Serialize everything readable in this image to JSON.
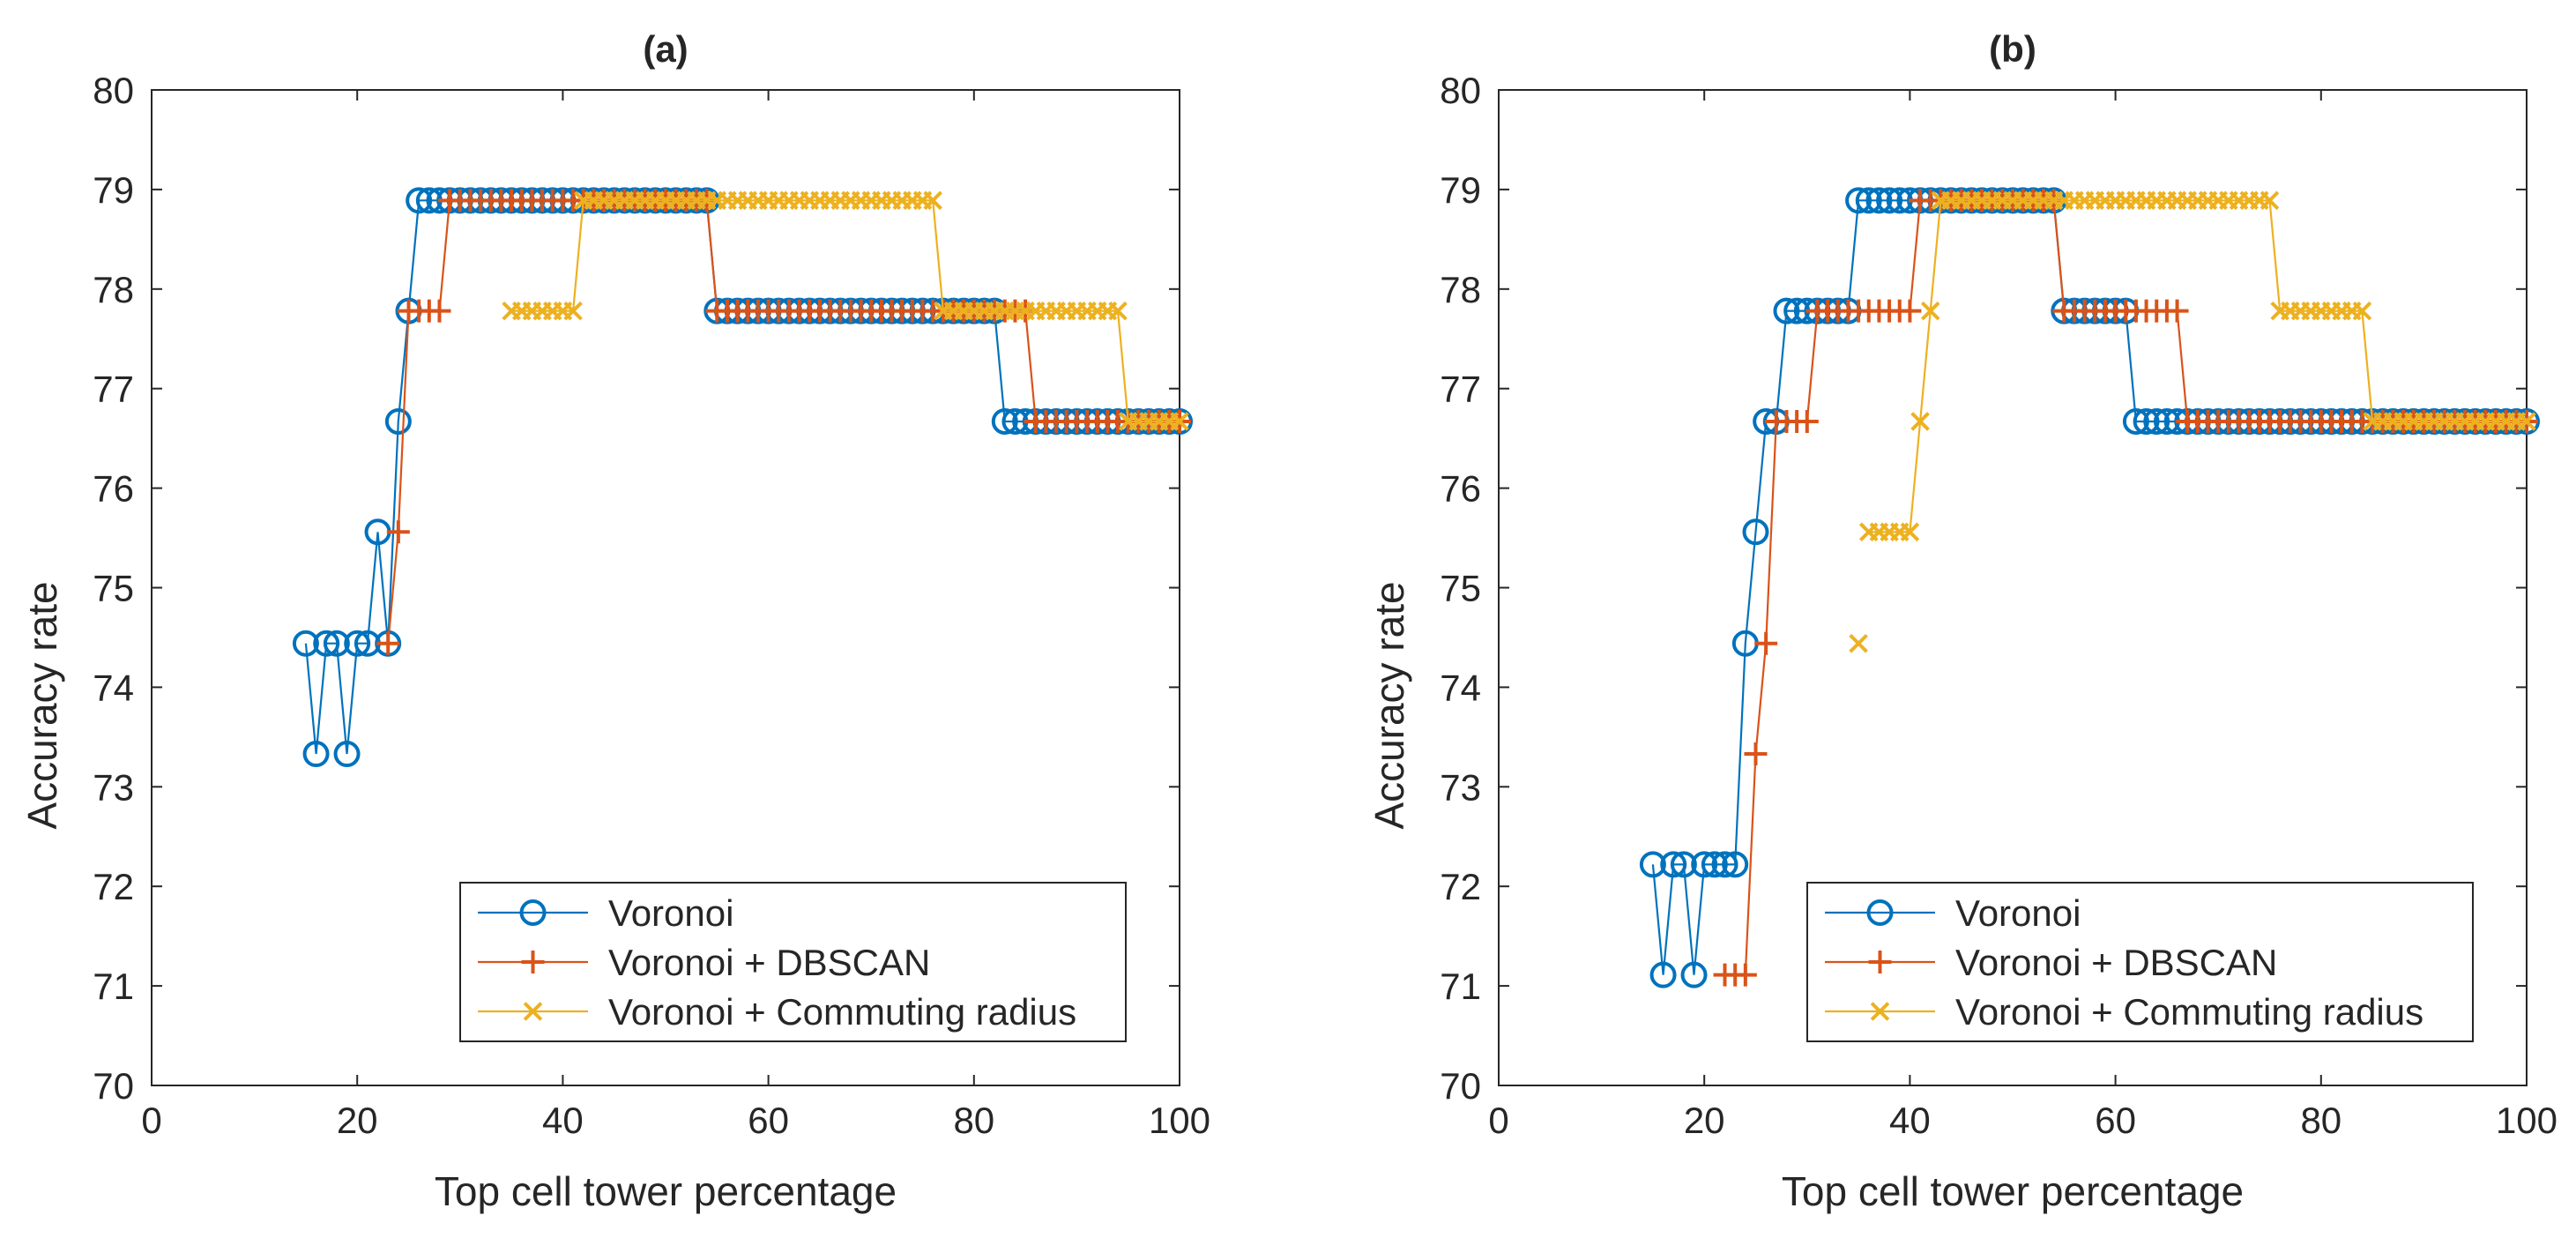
{
  "chart_data": [
    {
      "type": "line",
      "title": "(a)",
      "xlabel": "Top cell tower percentage",
      "ylabel": "Accuracy rate",
      "xlim": [
        0,
        100
      ],
      "ylim": [
        70,
        80
      ],
      "xticks": [
        0,
        20,
        40,
        60,
        80,
        100
      ],
      "yticks": [
        70,
        71,
        72,
        73,
        74,
        75,
        76,
        77,
        78,
        79,
        80
      ],
      "grid": false,
      "legend_position": "bottom-right",
      "series": [
        {
          "name": "Voronoi",
          "marker": "circle",
          "color": "#0072BD",
          "segments": [
            {
              "x_start": 15,
              "x_end": 100,
              "values": [
                74.44,
                73.33,
                74.44,
                74.44,
                73.33,
                74.44,
                74.44,
                75.56,
                74.44,
                76.67,
                77.78,
                78.89,
                78.89,
                78.89,
                78.89,
                78.89,
                78.89,
                78.89,
                78.89,
                78.89,
                78.89,
                78.89,
                78.89,
                78.89,
                78.89,
                78.89,
                78.89,
                78.89,
                78.89,
                78.89,
                78.89,
                78.89,
                78.89,
                78.89,
                78.89,
                78.89,
                78.89,
                78.89,
                78.89,
                78.89,
                77.78,
                77.78,
                77.78,
                77.78,
                77.78,
                77.78,
                77.78,
                77.78,
                77.78,
                77.78,
                77.78,
                77.78,
                77.78,
                77.78,
                77.78,
                77.78,
                77.78,
                77.78,
                77.78,
                77.78,
                77.78,
                77.78,
                77.78,
                77.78,
                77.78,
                77.78,
                77.78,
                77.78,
                76.67,
                76.67,
                76.67,
                76.67,
                76.67,
                76.67,
                76.67,
                76.67,
                76.67,
                76.67,
                76.67,
                76.67,
                76.67,
                76.67,
                76.67,
                76.67,
                76.67,
                76.67
              ]
            }
          ]
        },
        {
          "name": "Voronoi + DBSCAN",
          "marker": "plus",
          "color": "#D95319",
          "segments": [
            {
              "x_start": 23,
              "x_end": 100,
              "values": [
                74.44,
                75.56,
                77.78,
                77.78,
                77.78,
                77.78,
                78.89,
                78.89,
                78.89,
                78.89,
                78.89,
                78.89,
                78.89,
                78.89,
                78.89,
                78.89,
                78.89,
                78.89,
                78.89,
                78.89,
                78.89,
                78.89,
                78.89,
                78.89,
                78.89,
                78.89,
                78.89,
                78.89,
                78.89,
                78.89,
                78.89,
                78.89,
                77.78,
                77.78,
                77.78,
                77.78,
                77.78,
                77.78,
                77.78,
                77.78,
                77.78,
                77.78,
                77.78,
                77.78,
                77.78,
                77.78,
                77.78,
                77.78,
                77.78,
                77.78,
                77.78,
                77.78,
                77.78,
                77.78,
                77.78,
                77.78,
                77.78,
                77.78,
                77.78,
                77.78,
                77.78,
                77.78,
                77.78,
                76.67,
                76.67,
                76.67,
                76.67,
                76.67,
                76.67,
                76.67,
                76.67,
                76.67,
                76.67,
                76.67,
                76.67,
                76.67,
                76.67,
                76.67
              ]
            }
          ]
        },
        {
          "name": "Voronoi + Commuting radius",
          "marker": "x",
          "color": "#EDB120",
          "segments": [
            {
              "x_start": 35,
              "x_end": 100,
              "values": [
                77.78,
                77.78,
                77.78,
                77.78,
                77.78,
                77.78,
                77.78,
                78.89,
                78.89,
                78.89,
                78.89,
                78.89,
                78.89,
                78.89,
                78.89,
                78.89,
                78.89,
                78.89,
                78.89,
                78.89,
                78.89,
                78.89,
                78.89,
                78.89,
                78.89,
                78.89,
                78.89,
                78.89,
                78.89,
                78.89,
                78.89,
                78.89,
                78.89,
                78.89,
                78.89,
                78.89,
                78.89,
                78.89,
                78.89,
                78.89,
                78.89,
                78.89,
                77.78,
                77.78,
                77.78,
                77.78,
                77.78,
                77.78,
                77.78,
                77.78,
                77.78,
                77.78,
                77.78,
                77.78,
                77.78,
                77.78,
                77.78,
                77.78,
                77.78,
                77.78,
                76.67,
                76.67,
                76.67,
                76.67,
                76.67,
                76.67
              ]
            }
          ]
        }
      ]
    },
    {
      "type": "line",
      "title": "(b)",
      "xlabel": "Top cell tower percentage",
      "ylabel": "Accuracy rate",
      "xlim": [
        0,
        100
      ],
      "ylim": [
        70,
        80
      ],
      "xticks": [
        0,
        20,
        40,
        60,
        80,
        100
      ],
      "yticks": [
        70,
        71,
        72,
        73,
        74,
        75,
        76,
        77,
        78,
        79,
        80
      ],
      "grid": false,
      "legend_position": "bottom-right",
      "series": [
        {
          "name": "Voronoi",
          "marker": "circle",
          "color": "#0072BD",
          "segments": [
            {
              "x_start": 15,
              "x_end": 100,
              "values": [
                72.22,
                71.11,
                72.22,
                72.22,
                71.11,
                72.22,
                72.22,
                72.22,
                72.22,
                74.44,
                75.56,
                76.67,
                76.67,
                77.78,
                77.78,
                77.78,
                77.78,
                77.78,
                77.78,
                77.78,
                78.89,
                78.89,
                78.89,
                78.89,
                78.89,
                78.89,
                78.89,
                78.89,
                78.89,
                78.89,
                78.89,
                78.89,
                78.89,
                78.89,
                78.89,
                78.89,
                78.89,
                78.89,
                78.89,
                78.89,
                77.78,
                77.78,
                77.78,
                77.78,
                77.78,
                77.78,
                77.78,
                76.67,
                76.67,
                76.67,
                76.67,
                76.67,
                76.67,
                76.67,
                76.67,
                76.67,
                76.67,
                76.67,
                76.67,
                76.67,
                76.67,
                76.67,
                76.67,
                76.67,
                76.67,
                76.67,
                76.67,
                76.67,
                76.67,
                76.67,
                76.67,
                76.67,
                76.67,
                76.67,
                76.67,
                76.67,
                76.67,
                76.67,
                76.67,
                76.67,
                76.67,
                76.67,
                76.67,
                76.67,
                76.67,
                76.67
              ]
            }
          ]
        },
        {
          "name": "Voronoi + DBSCAN",
          "marker": "plus",
          "color": "#D95319",
          "segments": [
            {
              "x_start": 22,
              "x_end": 100,
              "values": [
                71.11,
                71.11,
                71.11,
                73.33,
                74.44,
                76.67,
                76.67,
                76.67,
                76.67,
                77.78,
                77.78,
                77.78,
                77.78,
                77.78,
                77.78,
                77.78,
                77.78,
                77.78,
                77.78,
                78.89,
                78.89,
                78.89,
                78.89,
                78.89,
                78.89,
                78.89,
                78.89,
                78.89,
                78.89,
                78.89,
                78.89,
                78.89,
                78.89,
                77.78,
                77.78,
                77.78,
                77.78,
                77.78,
                77.78,
                77.78,
                77.78,
                77.78,
                77.78,
                77.78,
                77.78,
                76.67,
                76.67,
                76.67,
                76.67,
                76.67,
                76.67,
                76.67,
                76.67,
                76.67,
                76.67,
                76.67,
                76.67,
                76.67,
                76.67,
                76.67,
                76.67,
                76.67,
                76.67,
                76.67,
                76.67,
                76.67,
                76.67,
                76.67,
                76.67,
                76.67,
                76.67,
                76.67,
                76.67,
                76.67,
                76.67,
                76.67,
                76.67,
                76.67,
                76.67
              ]
            }
          ]
        },
        {
          "name": "Voronoi + Commuting radius",
          "marker": "x",
          "color": "#EDB120",
          "segments": [
            {
              "x_start": 35,
              "x_end": 35,
              "values": [
                74.44
              ]
            },
            {
              "x_start": 36,
              "x_end": 100,
              "values": [
                75.56,
                75.56,
                75.56,
                75.56,
                75.56,
                76.67,
                77.78,
                78.89,
                78.89,
                78.89,
                78.89,
                78.89,
                78.89,
                78.89,
                78.89,
                78.89,
                78.89,
                78.89,
                78.89,
                78.89,
                78.89,
                78.89,
                78.89,
                78.89,
                78.89,
                78.89,
                78.89,
                78.89,
                78.89,
                78.89,
                78.89,
                78.89,
                78.89,
                78.89,
                78.89,
                78.89,
                78.89,
                78.89,
                78.89,
                78.89,
                77.78,
                77.78,
                77.78,
                77.78,
                77.78,
                77.78,
                77.78,
                77.78,
                77.78,
                76.67,
                76.67,
                76.67,
                76.67,
                76.67,
                76.67,
                76.67,
                76.67,
                76.67,
                76.67,
                76.67,
                76.67,
                76.67,
                76.67,
                76.67,
                76.67
              ]
            }
          ]
        }
      ]
    }
  ]
}
